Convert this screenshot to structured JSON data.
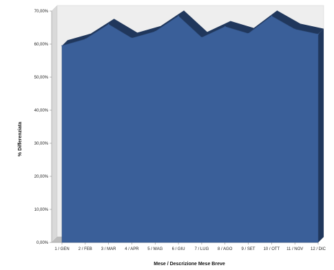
{
  "chart_data": {
    "type": "area",
    "title": "",
    "xlabel": "Mese / Descrizione Mese Breve",
    "ylabel": "% Differenziata",
    "categories": [
      "1 / GEN",
      "2 / FEB",
      "3 / MAR",
      "4 / APR",
      "5 / MAG",
      "6 / GIU",
      "7 / LUG",
      "8 / AGO",
      "9 / SET",
      "10 / OTT",
      "11 / NOV",
      "12 / DIC"
    ],
    "values": [
      59.5,
      61.5,
      66.0,
      61.8,
      63.8,
      68.5,
      62.0,
      65.3,
      63.2,
      68.5,
      64.5,
      63.0
    ],
    "ylim": [
      0,
      70
    ],
    "yticks": [
      "0,00%",
      "10,00%",
      "20,00%",
      "30,00%",
      "40,00%",
      "50,00%",
      "60,00%",
      "70,00%"
    ],
    "grid": false,
    "legend": "none",
    "colors": {
      "area": "#3a5f99",
      "area_shadow": "#20375c",
      "plot_wall": "#d9d9d9",
      "plot_floor": "#bdbdbd",
      "plot_back": "#eeeeee"
    }
  }
}
